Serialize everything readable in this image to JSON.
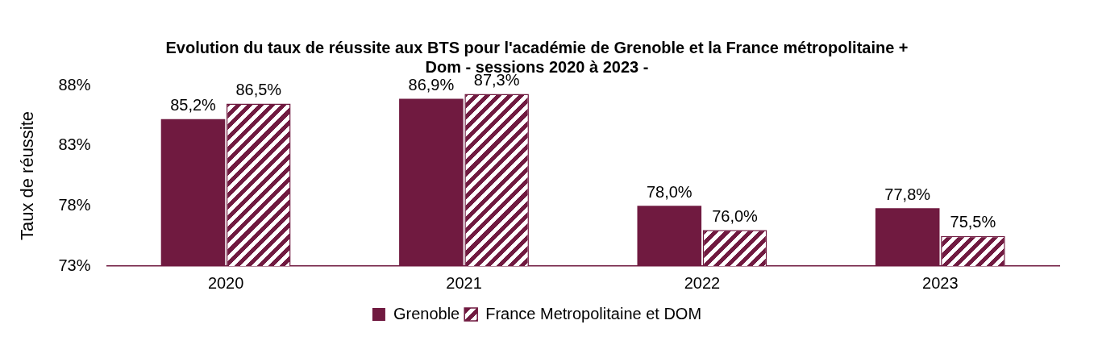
{
  "chart_data": {
    "type": "bar",
    "title": "Evolution du taux de réussite aux BTS pour l'académie de Grenoble et la France métropolitaine + Dom - sessions 2020 à 2023 -",
    "ylabel": "Taux de réussite",
    "categories": [
      "2020",
      "2021",
      "2022",
      "2023"
    ],
    "series": [
      {
        "name": "Grenoble",
        "color": "#701a40",
        "values": [
          85.2,
          86.9,
          78.0,
          77.8
        ],
        "value_labels": [
          "85,2%",
          "86,9%",
          "78,0%",
          "77,8%"
        ]
      },
      {
        "name": "France Metropolitaine et DOM",
        "color": "#701a40",
        "values": [
          86.5,
          87.3,
          76.0,
          75.5
        ],
        "value_labels": [
          "86,5%",
          "87,3%",
          "76,0%",
          "75,5%"
        ]
      }
    ],
    "ylim": [
      73,
      88
    ],
    "yticks": [
      {
        "value": 73,
        "label": "73%"
      },
      {
        "value": 78,
        "label": "78%"
      },
      {
        "value": 83,
        "label": "83%"
      },
      {
        "value": 88,
        "label": "88%"
      }
    ],
    "grid": false,
    "legend": "bottom"
  }
}
